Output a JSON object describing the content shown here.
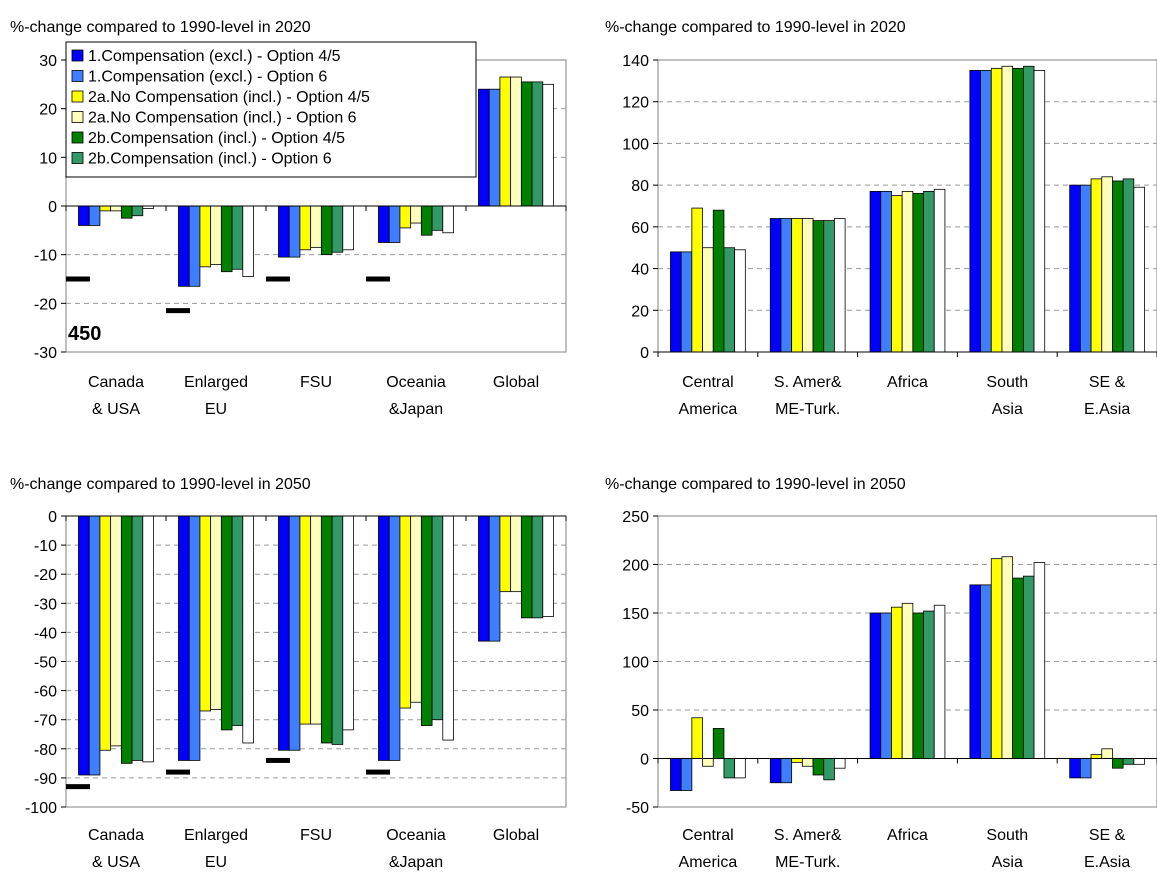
{
  "colors": {
    "s1": "#0000ff",
    "s2": "#3f7fff",
    "s3": "#ffff00",
    "s4": "#ffffbb",
    "s5": "#007f00",
    "s6": "#339966",
    "s7": "#ffffff"
  },
  "legend_items": [
    "1.Compensation (excl.) - Option 4/5",
    "1.Compensation (excl.) - Option 6",
    "2a.No Compensation (incl.) - Option 4/5",
    "2a.No Compensation (incl.) - Option 6",
    "2b.Compensation (incl.) - Option 4/5",
    "2b.Compensation (incl.) - Option 6"
  ],
  "chart_data": [
    {
      "type": "bar",
      "title": "%-change compared to 1990-level in 2020",
      "annotation": "450",
      "legend": "top-left",
      "ylim": [
        -30,
        30
      ],
      "yticks": [
        "-30",
        "-20",
        "-10",
        "0",
        "10",
        "20",
        "30"
      ],
      "categories": [
        [
          "Canada",
          "& USA"
        ],
        [
          "Enlarged",
          "EU"
        ],
        [
          "FSU"
        ],
        [
          "Oceania",
          "&Japan"
        ],
        [
          "Global"
        ]
      ],
      "series": [
        {
          "name": "1.Compensation (excl.) - Option 4/5",
          "values": [
            -4,
            -16.5,
            -10.5,
            -7.5,
            24
          ]
        },
        {
          "name": "1.Compensation (excl.) - Option 6",
          "values": [
            -4,
            -16.5,
            -10.5,
            -7.5,
            24
          ]
        },
        {
          "name": "2a.No Compensation (incl.) - Option 4/5",
          "values": [
            -1,
            -12.5,
            -9,
            -4.5,
            26.5
          ]
        },
        {
          "name": "2a.No Compensation (incl.) - Option 6",
          "values": [
            -1,
            -12,
            -8.5,
            -3.5,
            26.5
          ]
        },
        {
          "name": "2b.Compensation (incl.) - Option 4/5",
          "values": [
            -2.5,
            -13.5,
            -10,
            -6,
            25.5
          ]
        },
        {
          "name": "2b.Compensation (incl.) - Option 6",
          "values": [
            -2,
            -13,
            -9.5,
            -5,
            25.5
          ]
        },
        {
          "values": [
            -0.5,
            -14.5,
            -9,
            -5.5,
            25
          ]
        }
      ],
      "targets": [
        -15,
        -21.5,
        -15,
        -15,
        null
      ]
    },
    {
      "type": "bar",
      "title": "%-change compared to 1990-level in 2020",
      "ylim": [
        0,
        140
      ],
      "yticks": [
        "0",
        "20",
        "40",
        "60",
        "80",
        "100",
        "120",
        "140"
      ],
      "categories": [
        [
          "Central",
          "America"
        ],
        [
          "S. Amer&",
          "ME-Turk."
        ],
        [
          "Africa"
        ],
        [
          "South",
          "Asia"
        ],
        [
          "SE &",
          "E.Asia"
        ]
      ],
      "series": [
        {
          "values": [
            48,
            64,
            77,
            135,
            80
          ]
        },
        {
          "values": [
            48,
            64,
            77,
            135,
            80
          ]
        },
        {
          "values": [
            69,
            64,
            75,
            136,
            83
          ]
        },
        {
          "values": [
            50,
            64,
            77,
            137,
            84
          ]
        },
        {
          "values": [
            68,
            63,
            76,
            136,
            82
          ]
        },
        {
          "values": [
            50,
            63,
            77,
            137,
            83
          ]
        },
        {
          "values": [
            49,
            64,
            78,
            135,
            79
          ]
        }
      ]
    },
    {
      "type": "bar",
      "title": "%-change compared to 1990-level in 2050",
      "ylim": [
        -100,
        0
      ],
      "yticks": [
        "-100",
        "-90",
        "-80",
        "-70",
        "-60",
        "-50",
        "-40",
        "-30",
        "-20",
        "-10",
        "0"
      ],
      "categories": [
        [
          "Canada",
          "& USA"
        ],
        [
          "Enlarged",
          "EU"
        ],
        [
          "FSU"
        ],
        [
          "Oceania",
          "&Japan"
        ],
        [
          "Global"
        ]
      ],
      "series": [
        {
          "values": [
            -89,
            -84,
            -80.5,
            -84,
            -43
          ]
        },
        {
          "values": [
            -89,
            -84,
            -80.5,
            -84,
            -43
          ]
        },
        {
          "values": [
            -80.5,
            -67,
            -71.5,
            -66,
            -26
          ]
        },
        {
          "values": [
            -79,
            -66.5,
            -71.5,
            -64,
            -26
          ]
        },
        {
          "values": [
            -85,
            -73.5,
            -78,
            -72,
            -35
          ]
        },
        {
          "values": [
            -84,
            -72,
            -78.5,
            -70,
            -35
          ]
        },
        {
          "values": [
            -84.5,
            -78,
            -73.5,
            -77,
            -34.5
          ]
        }
      ],
      "targets": [
        -93,
        -88,
        -84,
        -88,
        null
      ]
    },
    {
      "type": "bar",
      "title": "%-change compared to 1990-level in 2050",
      "ylim": [
        -50,
        250
      ],
      "yticks": [
        "-50",
        "0",
        "50",
        "100",
        "150",
        "200",
        "250"
      ],
      "categories": [
        [
          "Central",
          "America"
        ],
        [
          "S. Amer&",
          "ME-Turk."
        ],
        [
          "Africa"
        ],
        [
          "South",
          "Asia"
        ],
        [
          "SE &",
          "E.Asia"
        ]
      ],
      "series": [
        {
          "values": [
            -33,
            -25,
            150,
            179,
            -20
          ]
        },
        {
          "values": [
            -33,
            -25,
            150,
            179,
            -20
          ]
        },
        {
          "values": [
            42,
            -4,
            156,
            206,
            4
          ]
        },
        {
          "values": [
            -8,
            -8,
            160,
            208,
            10
          ]
        },
        {
          "values": [
            31,
            -17,
            150,
            186,
            -10
          ]
        },
        {
          "values": [
            -20,
            -22,
            152,
            188,
            -6
          ]
        },
        {
          "values": [
            -20,
            -10,
            158,
            202,
            -6
          ]
        }
      ]
    }
  ]
}
